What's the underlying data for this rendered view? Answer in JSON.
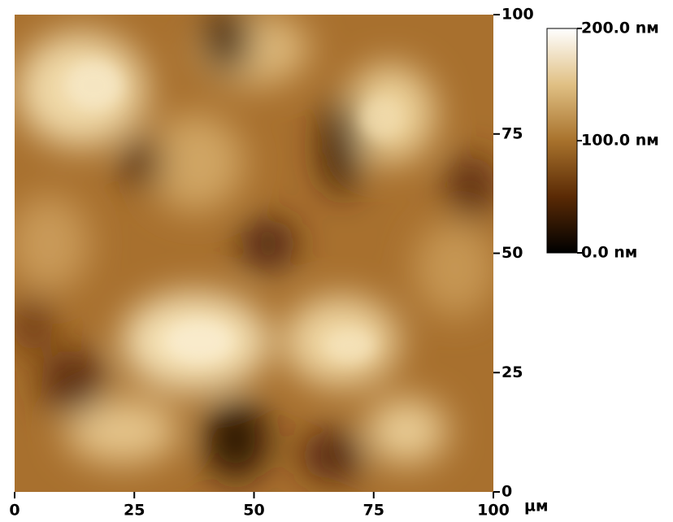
{
  "chart_data": {
    "type": "afm-image",
    "x_unit": "µм",
    "xlim": [
      0,
      100
    ],
    "xticks": [
      0,
      25,
      50,
      75,
      100
    ],
    "ylim": [
      0,
      100
    ],
    "yticks": [
      0,
      25,
      50,
      75,
      100
    ],
    "colorbar": {
      "lim": [
        0,
        200
      ],
      "ticks": [
        {
          "value": 0,
          "label": "0.0 nм"
        },
        {
          "value": 100,
          "label": "100.0 nм"
        },
        {
          "value": 200,
          "label": "200.0 nм"
        }
      ]
    }
  }
}
